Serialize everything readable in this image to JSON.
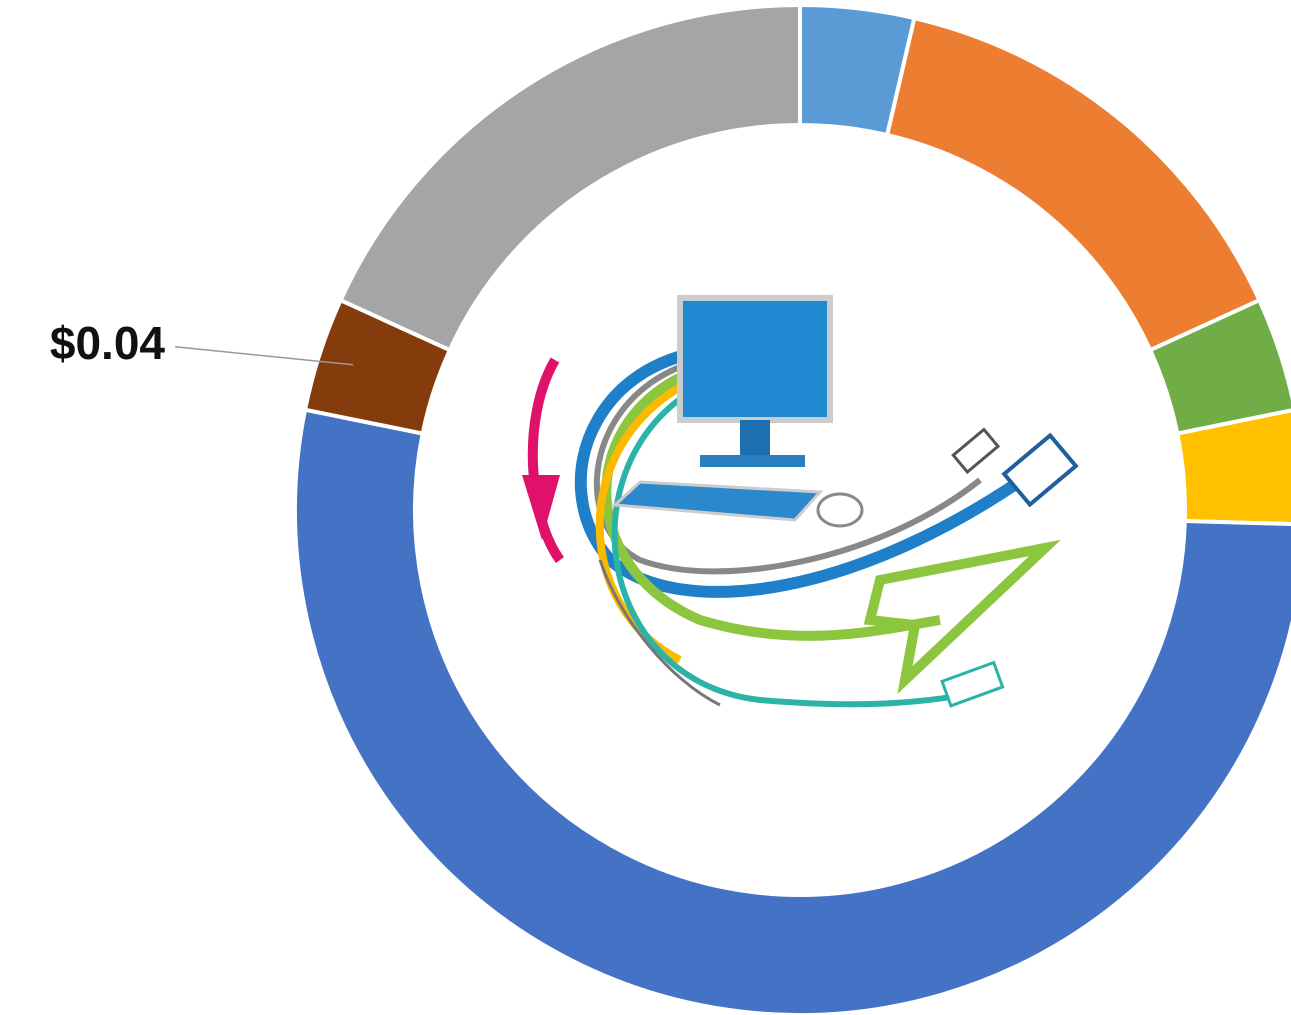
{
  "chart_data": {
    "type": "donut",
    "values": [
      0.04,
      0.16,
      0.04,
      0.04,
      0.58,
      0.04,
      0.2
    ],
    "value_labels": [
      null,
      null,
      null,
      null,
      null,
      "$0.04",
      null
    ],
    "colors": [
      "#5b9bd5",
      "#ed7d31",
      "#70ad47",
      "#ffc000",
      "#4472c4",
      "#843c0c",
      "#a5a5a5"
    ]
  }
}
